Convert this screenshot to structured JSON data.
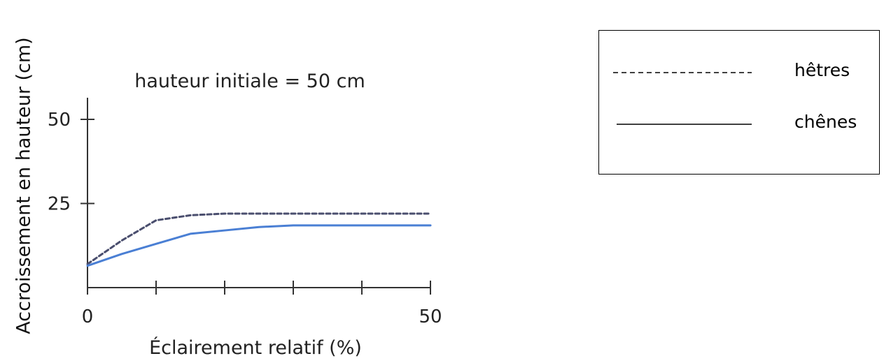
{
  "chart_data": {
    "type": "line",
    "title": "hauteur initiale = 50 cm",
    "xlabel": "Éclairement relatif (%)",
    "ylabel": "Accroissement en hauteur (cm)",
    "xlim": [
      0,
      50
    ],
    "ylim": [
      0,
      50
    ],
    "xticks": [
      0,
      10,
      20,
      30,
      40,
      50
    ],
    "yticks": [
      25,
      50
    ],
    "xticklabels": [
      "0",
      "",
      "",
      "",
      "",
      "50"
    ],
    "yticklabels": [
      "25",
      "50"
    ],
    "x": [
      0,
      5,
      10,
      15,
      20,
      25,
      30,
      40,
      50
    ],
    "series": [
      {
        "name": "hêtres",
        "style": "dashed",
        "color": "#4a4e6e",
        "values": [
          7,
          14,
          20,
          21.5,
          22,
          22,
          22,
          22,
          22
        ]
      },
      {
        "name": "chênes",
        "style": "solid",
        "color": "#4a7fd4",
        "values": [
          6.5,
          10,
          13,
          16,
          17,
          18,
          18.5,
          18.5,
          18.5
        ]
      }
    ],
    "legend": {
      "position": "right",
      "entries": [
        {
          "label": "hêtres",
          "style": "dashed"
        },
        {
          "label": "chênes",
          "style": "solid"
        }
      ]
    },
    "grid": false
  }
}
